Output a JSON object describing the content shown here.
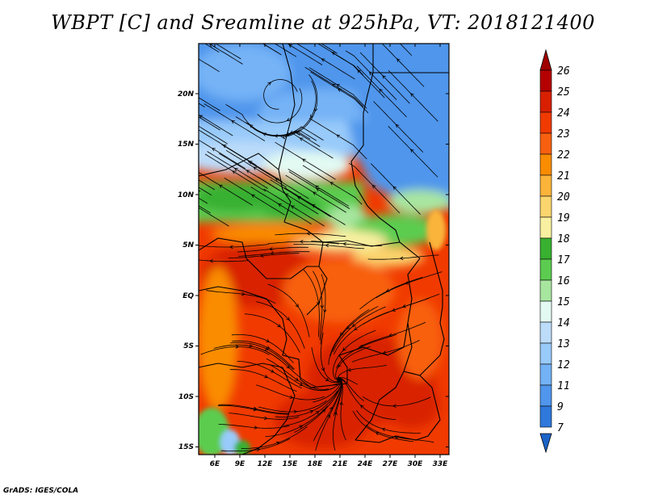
{
  "title": "WBPT [C] and Sreamline at 925hPa, VT: 2018121400",
  "credit": "GrADS: IGES/COLA",
  "axes": {
    "lon_labels": [
      "6E",
      "9E",
      "12E",
      "15E",
      "18E",
      "21E",
      "24E",
      "27E",
      "30E",
      "33E"
    ],
    "lat_labels": [
      "20N",
      "15N",
      "10N",
      "5N",
      "EQ",
      "5S",
      "10S",
      "15S"
    ]
  },
  "colorbar": {
    "labels": [
      "26",
      "25",
      "24",
      "23",
      "22",
      "21",
      "20",
      "19",
      "18",
      "17",
      "16",
      "15",
      "14",
      "13",
      "12",
      "11",
      "9",
      "7"
    ],
    "colors": [
      "#b40000",
      "#d82000",
      "#f03a00",
      "#f86010",
      "#fa8c00",
      "#fbb43a",
      "#fbd56e",
      "#f8f0a0",
      "#38b030",
      "#5ccc50",
      "#a8e6a0",
      "#e2faf2",
      "#bcdcfa",
      "#98cafa",
      "#74b2f6",
      "#5096ec",
      "#2f78dc"
    ],
    "arrow_top_color": "#a00000",
    "arrow_bottom_color": "#1c64c8"
  }
}
